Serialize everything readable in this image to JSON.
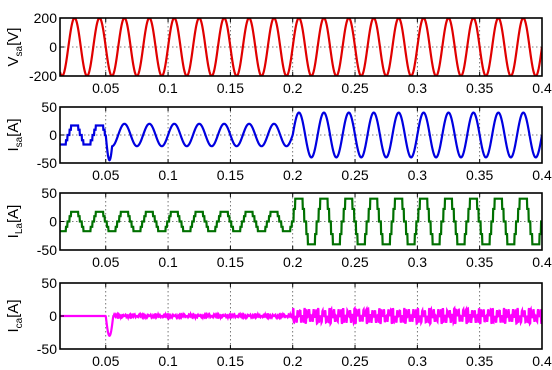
{
  "chart_data": [
    {
      "type": "line",
      "ylabel_main": "V",
      "ylabel_sub": "sa",
      "ylabel_unit": "[V]",
      "color": "#e00000",
      "xlim": [
        0.0133,
        0.4
      ],
      "ylim": [
        -200,
        200
      ],
      "yticks": [
        -200,
        0,
        200
      ],
      "xticks": [
        0.05,
        0.1,
        0.15,
        0.2,
        0.25,
        0.3,
        0.35,
        0.4
      ],
      "xtick_labels": [
        "0.05",
        "0.1",
        "0.15",
        "0.2",
        "0.25",
        "0.3",
        "0.35",
        "0.4"
      ],
      "grid": true,
      "series": [
        {
          "segments": [
            {
              "from": 0.0133,
              "to": 0.4,
              "amplitude": 200,
              "frequency_hz": 50,
              "phase_deg": 0,
              "shape": "sine"
            }
          ]
        }
      ]
    },
    {
      "type": "line",
      "ylabel_main": "I",
      "ylabel_sub": "sa",
      "ylabel_unit": "[A]",
      "color": "#0000e0",
      "xlim": [
        0.0133,
        0.4
      ],
      "ylim": [
        -50,
        50
      ],
      "yticks": [
        -50,
        0,
        50
      ],
      "xticks": [
        0.05,
        0.1,
        0.15,
        0.2,
        0.25,
        0.3,
        0.35,
        0.4
      ],
      "xtick_labels": [
        "0.05",
        "0.1",
        "0.15",
        "0.2",
        "0.25",
        "0.3",
        "0.35",
        "0.4"
      ],
      "grid": true,
      "series": [
        {
          "segments": [
            {
              "from": 0.0133,
              "to": 0.05,
              "amplitude": 17,
              "frequency_hz": 50,
              "phase_deg": 0,
              "shape": "quasi-square"
            },
            {
              "from": 0.05,
              "to": 0.2,
              "amplitude": 20,
              "frequency_hz": 50,
              "phase_deg": 0,
              "shape": "sine",
              "transient_peak": -45
            },
            {
              "from": 0.2,
              "to": 0.4,
              "amplitude": 40,
              "frequency_hz": 50,
              "phase_deg": 0,
              "shape": "sine"
            }
          ]
        }
      ]
    },
    {
      "type": "line",
      "ylabel_main": "I",
      "ylabel_sub": "La",
      "ylabel_unit": "[A]",
      "color": "#007000",
      "xlim": [
        0.0133,
        0.4
      ],
      "ylim": [
        -50,
        50
      ],
      "yticks": [
        -50,
        0,
        50
      ],
      "xticks": [
        0.05,
        0.1,
        0.15,
        0.2,
        0.25,
        0.3,
        0.35,
        0.4
      ],
      "xtick_labels": [
        "0.05",
        "0.1",
        "0.15",
        "0.2",
        "0.25",
        "0.3",
        "0.35",
        "0.4"
      ],
      "grid": true,
      "series": [
        {
          "segments": [
            {
              "from": 0.0133,
              "to": 0.2,
              "amplitude": 17,
              "frequency_hz": 50,
              "phase_deg": 0,
              "shape": "quasi-square"
            },
            {
              "from": 0.2,
              "to": 0.4,
              "amplitude": 40,
              "frequency_hz": 50,
              "phase_deg": 0,
              "shape": "quasi-square"
            }
          ]
        }
      ]
    },
    {
      "type": "line",
      "ylabel_main": "I",
      "ylabel_sub": "ca",
      "ylabel_unit": "[A]",
      "color": "#ff00ff",
      "xlim": [
        0.0133,
        0.4
      ],
      "ylim": [
        -50,
        50
      ],
      "yticks": [
        -50,
        0,
        50
      ],
      "xticks": [
        0.05,
        0.1,
        0.15,
        0.2,
        0.25,
        0.3,
        0.35,
        0.4
      ],
      "xtick_labels": [
        "0.05",
        "0.1",
        "0.15",
        "0.2",
        "0.25",
        "0.3",
        "0.35",
        "0.4"
      ],
      "grid": true,
      "series": [
        {
          "segments": [
            {
              "from": 0.0133,
              "to": 0.05,
              "amplitude": 0,
              "frequency_hz": 50,
              "phase_deg": 0,
              "shape": "flat"
            },
            {
              "from": 0.05,
              "to": 0.2,
              "amplitude": 5,
              "frequency_hz": 50,
              "phase_deg": 0,
              "shape": "ripple",
              "transient_peak": -30
            },
            {
              "from": 0.2,
              "to": 0.4,
              "amplitude": 22,
              "frequency_hz": 50,
              "phase_deg": 0,
              "shape": "ripple"
            }
          ]
        }
      ]
    }
  ]
}
